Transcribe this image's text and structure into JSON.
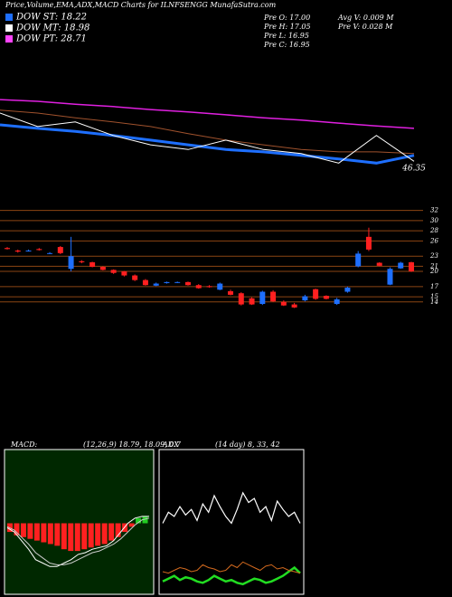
{
  "header": {
    "title": "Price,Volume,EMA,ADX,MACD Charts for ILNFSENGG MunafaSutra.com",
    "legend": [
      {
        "label": "DOW ST: 18.22",
        "color": "#1e6fff"
      },
      {
        "label": "DOW MT: 18.98",
        "color": "#ffffff"
      },
      {
        "label": "DOW PT: 28.71",
        "color": "#ff44ff"
      }
    ],
    "info": [
      "Pre   O: 17.00",
      "Pre   H: 17.05",
      "Pre   L: 16.95",
      "Pre   C: 16.95",
      "Avg V: 0.009 M",
      "Pre   V: 0.028 M"
    ]
  },
  "chart_data": [
    {
      "type": "line",
      "annotation": "46.35",
      "ylim": [
        40,
        60
      ],
      "series": [
        {
          "color": "#e020e0",
          "values": [
            52.3,
            52.0,
            51.5,
            51.1,
            50.6,
            50.2,
            49.7,
            49.2,
            48.8,
            48.3,
            47.8,
            47.4
          ]
        },
        {
          "color": "#a0522d",
          "values": [
            50.5,
            50.0,
            49.2,
            48.5,
            47.7,
            46.5,
            45.4,
            44.6,
            43.8,
            43.4,
            43.4,
            43.1
          ]
        },
        {
          "color": "#1e6fff",
          "values": [
            48.0,
            47.4,
            46.9,
            46.2,
            45.4,
            44.6,
            43.8,
            43.4,
            42.8,
            42.2,
            41.5,
            42.8
          ]
        },
        {
          "color": "#ffffff",
          "values": [
            50.0,
            47.7,
            48.5,
            46.2,
            44.6,
            43.8,
            45.4,
            43.8,
            43.1,
            41.5,
            46.2,
            41.8
          ]
        }
      ]
    },
    {
      "type": "candlestick",
      "ylim": [
        12,
        33
      ],
      "yticks": [
        32,
        30,
        28,
        26,
        23,
        21,
        20,
        17,
        15,
        14
      ],
      "up_color": "#1e6fff",
      "down_color": "#ff2020",
      "grid_color": "#8b4513",
      "open": [
        24.6,
        24.1,
        24.0,
        24.4,
        23.5,
        24.8,
        20.5,
        22.0,
        21.8,
        20.9,
        20.3,
        20.0,
        19.2,
        18.3,
        17.2,
        17.7,
        17.8,
        17.9,
        17.3,
        17.1,
        16.4,
        16.1,
        15.7,
        14.7,
        13.6,
        16.0,
        14.0,
        13.5,
        14.3,
        16.5,
        15.2,
        13.6,
        16.0,
        21.0,
        26.8,
        21.7,
        17.4,
        20.6,
        21.8
      ],
      "high": [
        24.8,
        24.3,
        24.3,
        24.6,
        23.8,
        25.0,
        26.8,
        22.2,
        21.9,
        21.0,
        20.4,
        20.1,
        19.4,
        18.5,
        17.8,
        18.0,
        18.0,
        18.0,
        17.5,
        17.3,
        17.8,
        16.4,
        15.9,
        14.9,
        16.2,
        16.3,
        14.3,
        13.8,
        15.4,
        16.6,
        15.3,
        14.8,
        17.0,
        24.0,
        28.6,
        21.8,
        20.8,
        21.9,
        21.9
      ],
      "low": [
        24.3,
        23.7,
        23.9,
        24.1,
        23.4,
        23.4,
        20.0,
        21.6,
        20.8,
        20.2,
        19.5,
        19.0,
        18.1,
        17.2,
        17.1,
        17.6,
        17.7,
        17.2,
        16.6,
        16.8,
        16.3,
        15.3,
        13.3,
        13.4,
        13.4,
        14.0,
        13.2,
        12.8,
        14.1,
        14.4,
        14.5,
        13.4,
        15.8,
        20.8,
        24.0,
        21.0,
        17.3,
        20.5,
        19.9
      ],
      "close": [
        24.4,
        23.9,
        24.1,
        24.2,
        23.6,
        23.6,
        23.0,
        21.8,
        20.9,
        20.3,
        19.7,
        19.2,
        18.3,
        17.3,
        17.6,
        17.9,
        17.9,
        17.3,
        16.7,
        16.9,
        17.6,
        15.4,
        13.5,
        13.5,
        16.0,
        14.1,
        13.3,
        12.9,
        15.1,
        14.6,
        14.6,
        14.5,
        16.8,
        23.5,
        24.3,
        21.1,
        20.5,
        21.7,
        20.0
      ]
    },
    {
      "type": "macd",
      "title": "MACD:",
      "subtitle": "(12,26,9) 18.79, 18.09, 0.7",
      "ylim": [
        -4,
        4
      ],
      "pos_color": "#22cc22",
      "neg_color": "#ff2020",
      "histogram": [
        -0.5,
        -0.7,
        -0.8,
        -0.9,
        -1.0,
        -1.1,
        -1.2,
        -1.3,
        -1.5,
        -1.6,
        -1.6,
        -1.5,
        -1.4,
        -1.3,
        -1.2,
        -1.0,
        -0.8,
        -0.5,
        -0.2,
        0.3,
        0.4
      ],
      "series": [
        {
          "color": "#ffffff",
          "values": [
            -0.26,
            -0.5,
            -1.0,
            -1.5,
            -2.1,
            -2.3,
            -2.5,
            -2.5,
            -2.3,
            -2.1,
            -1.8,
            -1.7,
            -1.5,
            -1.4,
            -1.3,
            -1.0,
            -0.5,
            0,
            0.3,
            0.4,
            0.4
          ]
        },
        {
          "color": "#cccccc",
          "values": [
            -0.2,
            -0.4,
            -0.8,
            -1.2,
            -1.7,
            -2.0,
            -2.3,
            -2.4,
            -2.4,
            -2.3,
            -2.1,
            -1.9,
            -1.7,
            -1.6,
            -1.4,
            -1.2,
            -0.9,
            -0.5,
            -0.1,
            0.2,
            0.3
          ]
        }
      ]
    },
    {
      "type": "adx",
      "title": "ADX",
      "subtitle": "(14 day) 8, 33, 42",
      "ylim": [
        0,
        100
      ],
      "series": [
        {
          "color": "#ffffff",
          "values": [
            50,
            58,
            55,
            62,
            56,
            60,
            52,
            64,
            58,
            70,
            62,
            55,
            50,
            60,
            72,
            65,
            68,
            58,
            62,
            52,
            66,
            60,
            55,
            58,
            50
          ]
        },
        {
          "color": "#22dd22",
          "values": [
            8,
            10,
            12,
            9,
            11,
            10,
            8,
            7,
            9,
            12,
            10,
            8,
            9,
            7,
            6,
            8,
            10,
            9,
            7,
            8,
            10,
            12,
            15,
            18,
            14
          ]
        },
        {
          "color": "#d2691e",
          "values": [
            15,
            14,
            16,
            18,
            17,
            15,
            16,
            20,
            18,
            17,
            15,
            16,
            20,
            18,
            22,
            20,
            18,
            16,
            19,
            20,
            17,
            18,
            16,
            15,
            14
          ]
        }
      ]
    }
  ]
}
